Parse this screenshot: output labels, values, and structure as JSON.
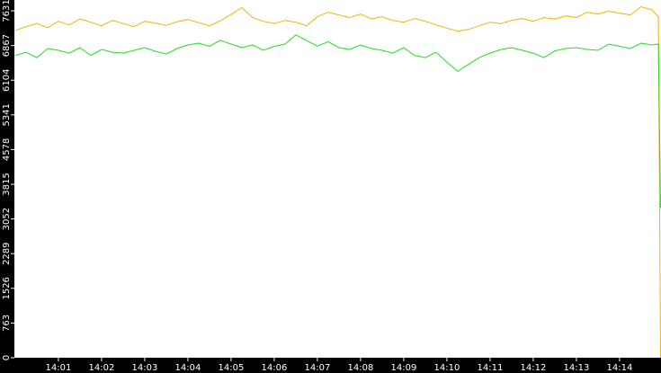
{
  "chart_data": {
    "type": "line",
    "x": [
      0,
      0.25,
      0.5,
      0.75,
      1,
      1.25,
      1.5,
      1.75,
      2,
      2.25,
      2.5,
      2.75,
      3,
      3.25,
      3.5,
      3.75,
      4,
      4.25,
      4.5,
      4.75,
      5,
      5.25,
      5.5,
      5.75,
      6,
      6.25,
      6.5,
      6.75,
      7,
      7.25,
      7.5,
      7.75,
      8,
      8.25,
      8.5,
      8.75,
      9,
      9.25,
      9.5,
      9.75,
      10,
      10.25,
      10.5,
      10.75,
      11,
      11.25,
      11.5,
      11.75,
      12,
      12.25,
      12.5,
      12.75,
      13,
      13.25,
      13.5,
      13.75,
      14,
      14.25,
      14.5,
      14.75,
      14.9,
      14.95
    ],
    "series": [
      {
        "color": "#f0b400",
        "values": [
          7200,
          7280,
          7350,
          7260,
          7400,
          7320,
          7450,
          7380,
          7300,
          7420,
          7350,
          7280,
          7400,
          7360,
          7310,
          7390,
          7440,
          7370,
          7300,
          7410,
          7550,
          7700,
          7480,
          7400,
          7350,
          7420,
          7380,
          7300,
          7500,
          7600,
          7540,
          7480,
          7560,
          7450,
          7500,
          7420,
          7380,
          7460,
          7400,
          7320,
          7250,
          7180,
          7220,
          7300,
          7380,
          7350,
          7420,
          7460,
          7400,
          7480,
          7450,
          7520,
          7480,
          7600,
          7560,
          7620,
          7580,
          7540,
          7720,
          7650,
          7500,
          0
        ]
      },
      {
        "color": "#22dd22",
        "values": [
          6650,
          6720,
          6600,
          6800,
          6760,
          6700,
          6820,
          6650,
          6780,
          6720,
          6700,
          6760,
          6820,
          6740,
          6680,
          6800,
          6880,
          6920,
          6850,
          6980,
          6900,
          6820,
          6880,
          6760,
          6850,
          6900,
          7100,
          6980,
          6850,
          6950,
          6820,
          6780,
          6880,
          6800,
          6760,
          6700,
          6820,
          6650,
          6600,
          6720,
          6500,
          6300,
          6450,
          6600,
          6700,
          6780,
          6820,
          6760,
          6700,
          6600,
          6750,
          6800,
          6820,
          6780,
          6760,
          6900,
          6850,
          6800,
          6920,
          6880,
          6900,
          3300
        ]
      }
    ],
    "xlim": [
      -0.02,
      14.96
    ],
    "ylim": [
      0,
      7868
    ],
    "xticks": [
      {
        "value": 1,
        "label": "14:01"
      },
      {
        "value": 2,
        "label": "14:02"
      },
      {
        "value": 3,
        "label": "14:03"
      },
      {
        "value": 4,
        "label": "14:04"
      },
      {
        "value": 5,
        "label": "14:05"
      },
      {
        "value": 6,
        "label": "14:06"
      },
      {
        "value": 7,
        "label": "14:07"
      },
      {
        "value": 8,
        "label": "14:08"
      },
      {
        "value": 9,
        "label": "14:09"
      },
      {
        "value": 10,
        "label": "14:10"
      },
      {
        "value": 11,
        "label": "14:11"
      },
      {
        "value": 12,
        "label": "14:12"
      },
      {
        "value": 13,
        "label": "14:13"
      },
      {
        "value": 14,
        "label": "14:14"
      }
    ],
    "yticks": [
      0,
      763,
      1526,
      2289,
      3052,
      3815,
      4578,
      5341,
      6104,
      6867,
      7631
    ]
  }
}
